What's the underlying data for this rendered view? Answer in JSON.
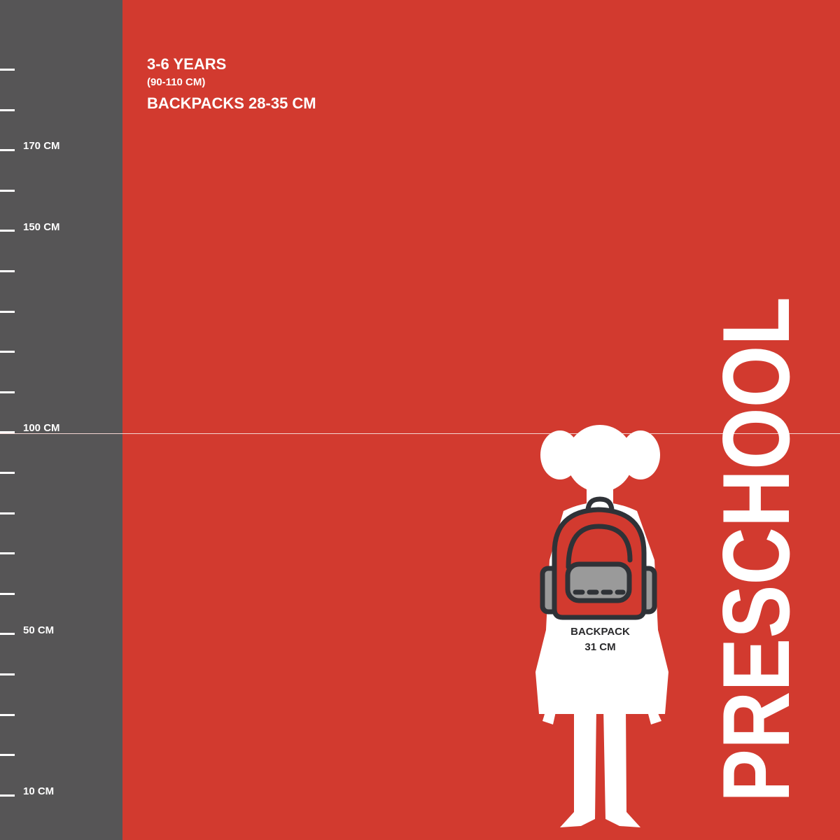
{
  "ruler": {
    "labels": {
      "l170": "170 CM",
      "l150": "150 CM",
      "l100": "100 CM",
      "l50": "50 CM",
      "l10": "10 CM"
    }
  },
  "info": {
    "age": "3-6 YEARS",
    "height_range": "(90-110 CM)",
    "backpack_range": "BACKPACKS 28-35 CM"
  },
  "figure": {
    "backpack_label": "BACKPACK",
    "backpack_size": "31 CM"
  },
  "category": "PRESCHOOL",
  "colors": {
    "background": "#d23a2f",
    "ruler": "#565556",
    "silhouette": "#ffffff",
    "backpack_outline": "#2f3237",
    "backpack_pocket": "#9a9a9a"
  }
}
